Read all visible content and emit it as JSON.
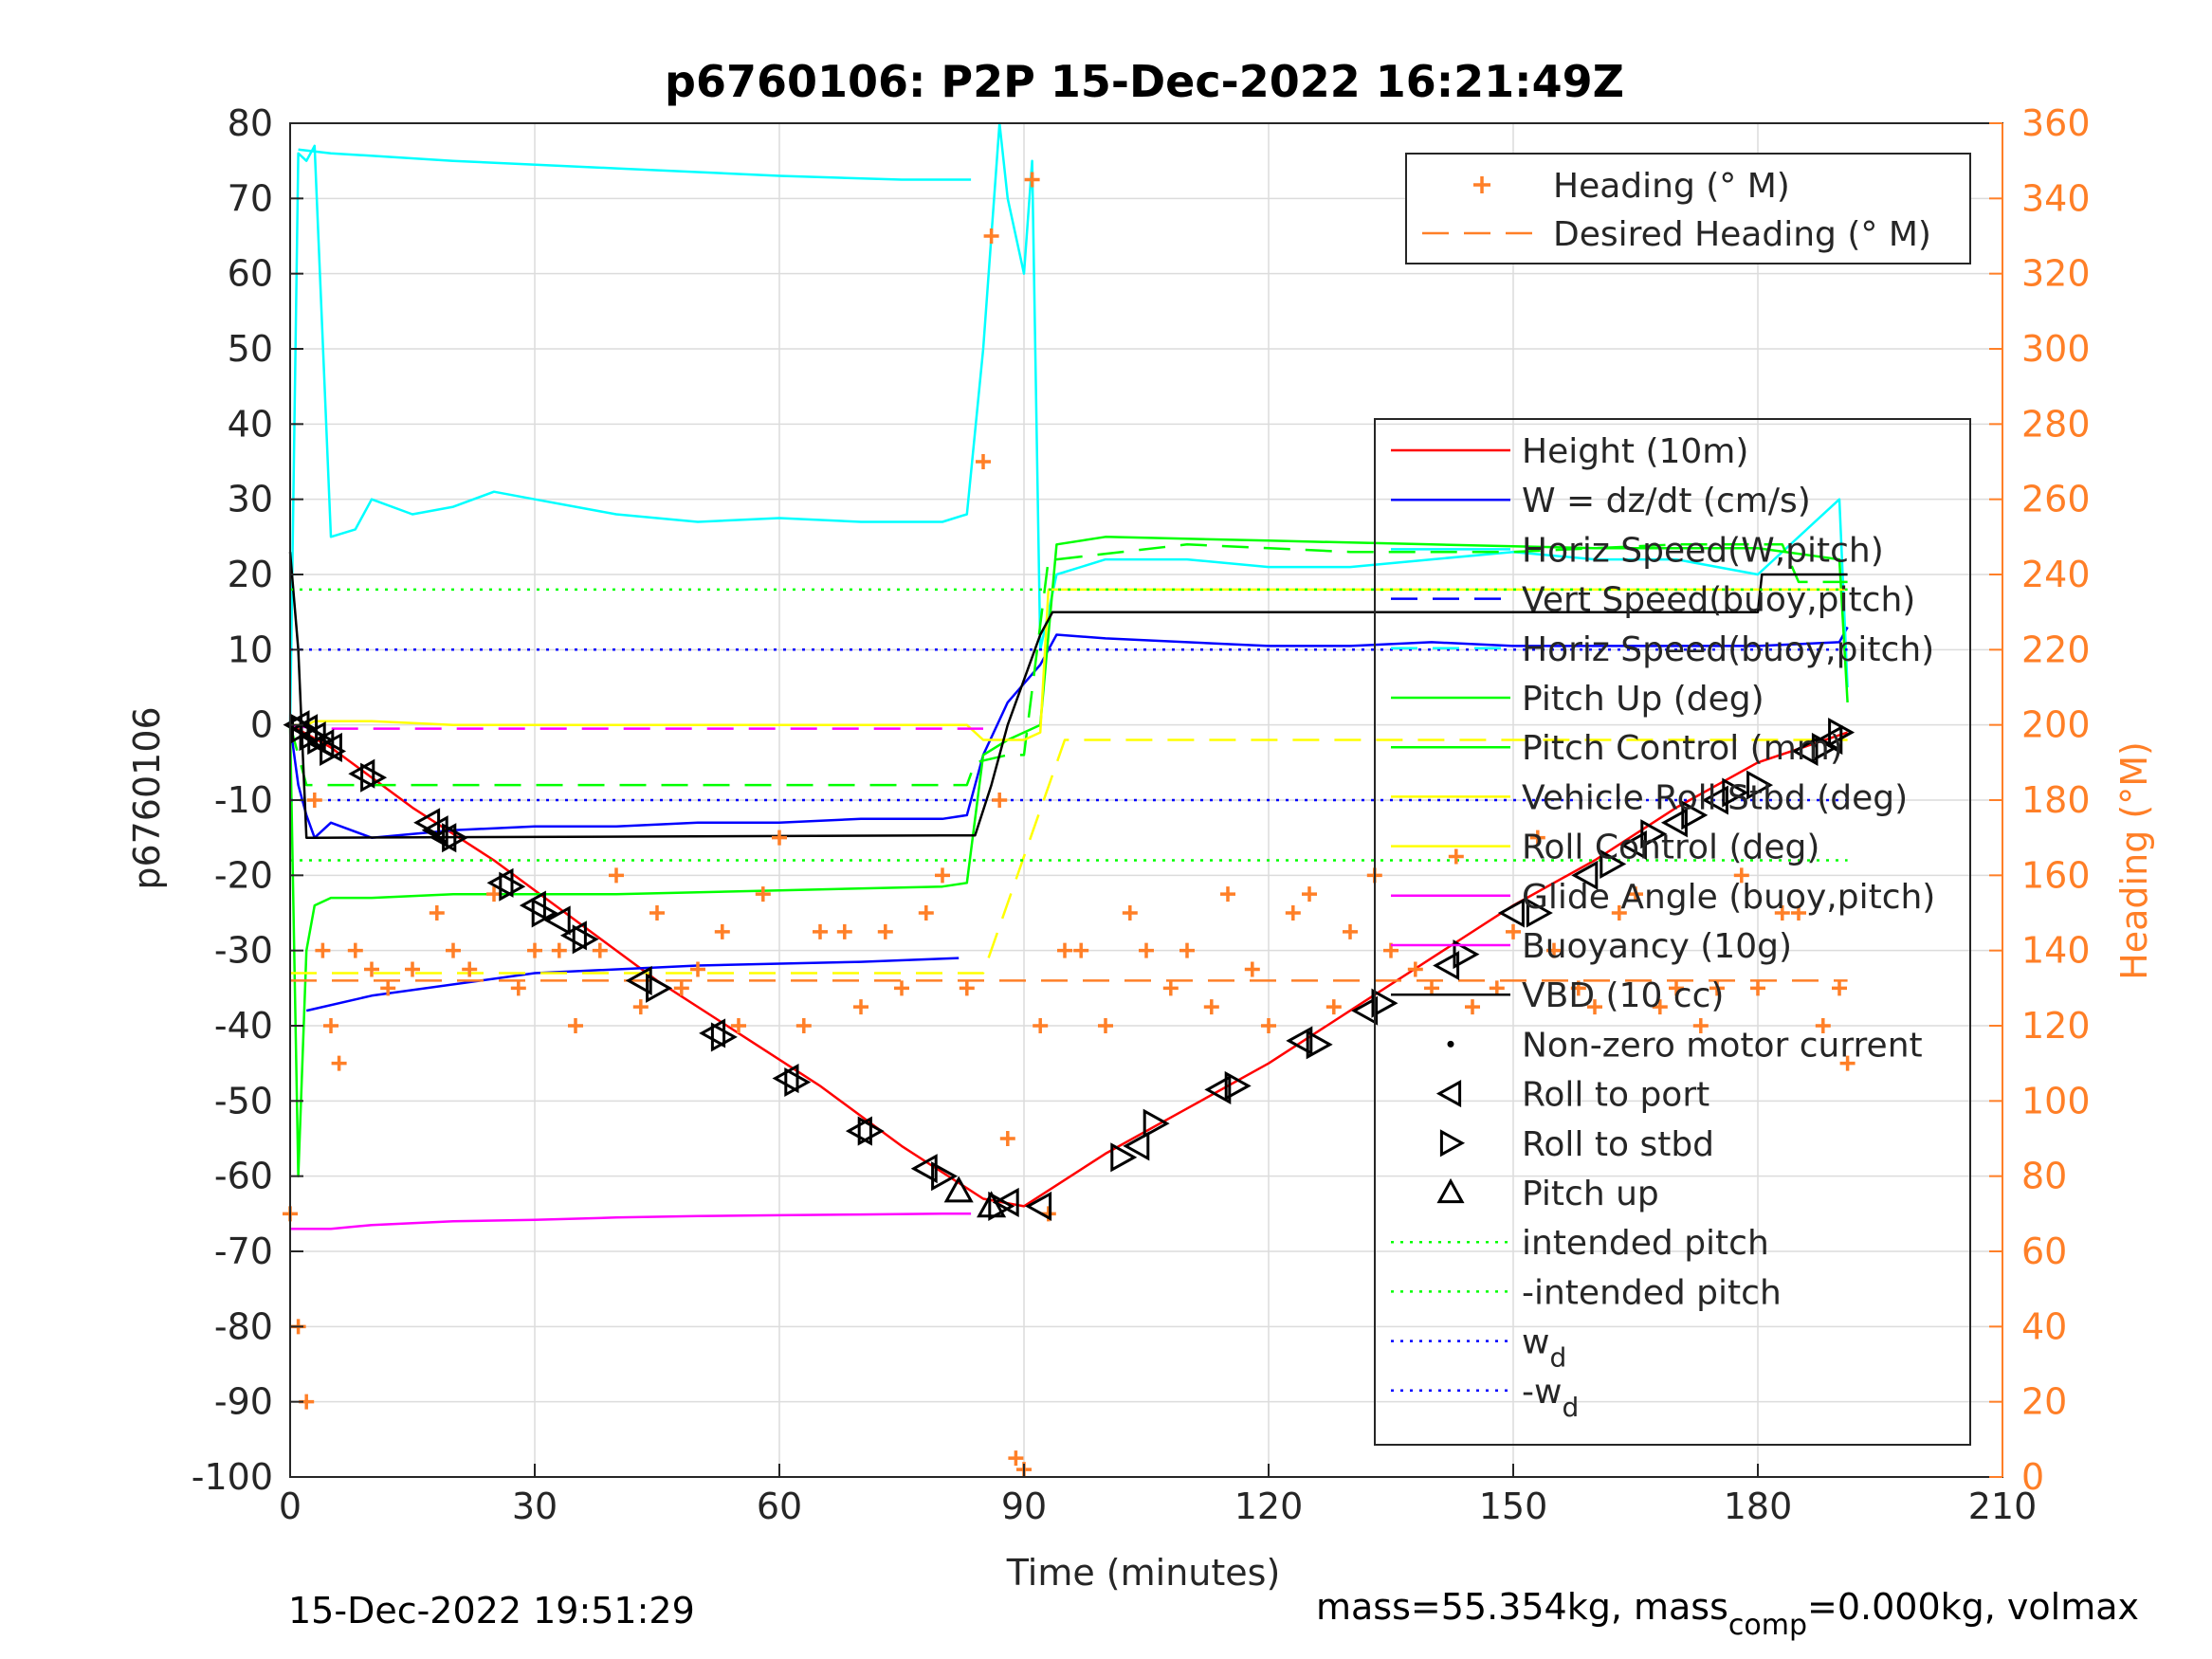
{
  "chart_data": {
    "type": "line",
    "title": "p6760106: P2P 15-Dec-2022 16:21:49Z",
    "xlabel": "Time (minutes)",
    "ylabel": "p6760106",
    "y2label": "Heading (°M)",
    "xlim": [
      0,
      210
    ],
    "ylim": [
      -100,
      80
    ],
    "y2lim": [
      0,
      360
    ],
    "xticks": [
      "0",
      "30",
      "60",
      "90",
      "120",
      "150",
      "180",
      "210"
    ],
    "yticks": [
      "80",
      "70",
      "60",
      "50",
      "40",
      "30",
      "20",
      "10",
      "0",
      "-10",
      "-20",
      "-30",
      "-40",
      "-50",
      "-60",
      "-70",
      "-80",
      "-90",
      "-100"
    ],
    "y2ticks": [
      "360",
      "340",
      "320",
      "300",
      "280",
      "260",
      "240",
      "220",
      "200",
      "180",
      "160",
      "140",
      "120",
      "100",
      "80",
      "60",
      "40",
      "20",
      "0"
    ],
    "grid": true,
    "footer_left": "15-Dec-2022 19:51:29",
    "footer_right": {
      "part1": "mass=55.354kg, mass",
      "sub": "comp",
      "part2": "=0.000kg, volmax"
    },
    "colors": {
      "heading": "#ff7f27",
      "height": "#ff0000",
      "w": "#0000ff",
      "horiz_speed_w": "#00ffff",
      "vert_speed_buoy": "#0000ff",
      "horiz_speed_buoy": "#00ffff",
      "pitch_up": "#00ff00",
      "pitch_control": "#00ff00",
      "roll": "#ffff00",
      "roll_control": "#ffff00",
      "glide_angle": "#ff00ff",
      "buoyancy": "#ff00ff",
      "vbd": "#000000",
      "intended_pitch": "#00ff00",
      "wd": "#0000ff"
    },
    "legend_heading": [
      {
        "label": "Heading (° M)",
        "style": "marker-plus",
        "color": "#ff7f27"
      },
      {
        "label": "Desired Heading (° M)",
        "style": "dashed",
        "color": "#ff7f27"
      }
    ],
    "legend_main": [
      {
        "label": "Height (10m)",
        "style": "solid",
        "color": "#ff0000"
      },
      {
        "label": "W = dz/dt (cm/s)",
        "style": "solid",
        "color": "#0000ff"
      },
      {
        "label": "Horiz Speed(W,pitch)",
        "style": "solid",
        "color": "#00ffff"
      },
      {
        "label": "Vert Speed(buoy,pitch)",
        "style": "dashed",
        "color": "#0000ff"
      },
      {
        "label": "Horiz Speed(buoy,pitch)",
        "style": "dashed",
        "color": "#00ffff"
      },
      {
        "label": "Pitch Up (deg)",
        "style": "solid",
        "color": "#00ff00"
      },
      {
        "label": "Pitch Control (mm)",
        "style": "solid",
        "color": "#00ff00"
      },
      {
        "label": "Vehicle Roll Stbd (deg)",
        "style": "solid",
        "color": "#ffff00"
      },
      {
        "label": "Roll Control (deg)",
        "style": "solid",
        "color": "#ffff00"
      },
      {
        "label": "Glide Angle (buoy,pitch)",
        "style": "solid",
        "color": "#ff00ff"
      },
      {
        "label": "Buoyancy (10g)",
        "style": "solid",
        "color": "#ff00ff"
      },
      {
        "label": "VBD (10 cc)",
        "style": "solid",
        "color": "#000000"
      },
      {
        "label": "Non-zero motor current",
        "style": "dot",
        "color": "#000000"
      },
      {
        "label": "Roll to port",
        "style": "tri-left",
        "color": "#000000"
      },
      {
        "label": "Roll to stbd",
        "style": "tri-right",
        "color": "#000000"
      },
      {
        "label": "Pitch up",
        "style": "tri-up",
        "color": "#000000"
      },
      {
        "label": "intended pitch",
        "style": "dotted",
        "color": "#00ff00"
      },
      {
        "label": "-intended pitch",
        "style": "dotted",
        "color": "#00ff00"
      },
      {
        "label": "w",
        "sub": "d",
        "style": "dotted",
        "color": "#0000ff"
      },
      {
        "label": "-w",
        "sub": "d",
        "style": "dotted",
        "color": "#0000ff"
      }
    ],
    "series": [
      {
        "name": "Height (10m)",
        "x": [
          0,
          5,
          15,
          25,
          35,
          45,
          55,
          65,
          75,
          85,
          90,
          100,
          110,
          120,
          130,
          140,
          150,
          160,
          170,
          180,
          191
        ],
        "y": [
          0,
          -3,
          -11,
          -18,
          -26,
          -34,
          -41,
          -48,
          -56,
          -63,
          -64,
          -57,
          -51,
          -45,
          -38,
          -31,
          -24,
          -18,
          -11,
          -5,
          -1
        ]
      },
      {
        "name": "W = dz/dt (cm/s)",
        "x": [
          0,
          1,
          2,
          3,
          5,
          10,
          20,
          30,
          40,
          50,
          60,
          70,
          80,
          83,
          85,
          88,
          92,
          94,
          100,
          110,
          120,
          130,
          140,
          150,
          160,
          170,
          180,
          190,
          191
        ],
        "y": [
          0,
          -8,
          -12,
          -15,
          -13,
          -15,
          -14,
          -13.5,
          -13.5,
          -13,
          -13,
          -12.5,
          -12.5,
          -12,
          -4,
          3,
          8,
          12,
          11.5,
          11,
          10.5,
          10.5,
          11,
          10.5,
          10.5,
          10.5,
          10.5,
          11,
          13
        ]
      },
      {
        "name": "Horiz Speed(W,pitch)",
        "x": [
          0,
          1,
          2,
          3,
          5,
          8,
          10,
          15,
          20,
          25,
          30,
          40,
          50,
          60,
          70,
          80,
          83,
          85,
          87,
          88,
          89,
          90,
          91,
          92,
          94,
          100,
          110,
          120,
          130,
          140,
          150,
          160,
          170,
          180,
          190,
          191
        ],
        "y": [
          0,
          76,
          75,
          77,
          25,
          26,
          30,
          28,
          29,
          31,
          30,
          28,
          27,
          27.5,
          27,
          27,
          28,
          50,
          80,
          70,
          65,
          60,
          75,
          10,
          20,
          22,
          22,
          21,
          21,
          22,
          23,
          22,
          22,
          20,
          30,
          5
        ]
      },
      {
        "name": "Vert Speed(buoy,pitch)",
        "x": [
          2,
          10,
          30,
          50,
          70,
          82
        ],
        "y": [
          -38,
          -36,
          -33,
          -32,
          -31.5,
          -31
        ]
      },
      {
        "name": "Horiz Speed(buoy,pitch)",
        "x": [
          1,
          5,
          20,
          40,
          60,
          75,
          83.5
        ],
        "y": [
          76.5,
          76,
          75,
          74,
          73,
          72.5,
          72.5
        ]
      },
      {
        "name": "Pitch Up (deg)",
        "x": [
          0,
          1,
          2,
          3,
          5,
          10,
          20,
          40,
          60,
          80,
          83,
          85,
          88,
          92,
          94,
          100,
          120,
          140,
          160,
          180,
          190,
          191
        ],
        "y": [
          0,
          -60,
          -30,
          -24,
          -23,
          -23,
          -22.5,
          -22.5,
          -22,
          -21.5,
          -21,
          -4,
          -2,
          0,
          24,
          25,
          24.5,
          24,
          23.5,
          23.5,
          22,
          3
        ]
      },
      {
        "name": "Pitch Control (mm)",
        "x": [
          0,
          2,
          3,
          83,
          84,
          88,
          90,
          93,
          94,
          110,
          130,
          150,
          170,
          183,
          185,
          191
        ],
        "y": [
          0,
          -8,
          -8,
          -8,
          -5,
          -4,
          -4,
          22,
          22,
          24,
          23,
          23,
          24,
          24,
          19,
          19
        ]
      },
      {
        "name": "Vehicle Roll Stbd (deg)",
        "x": [
          0,
          2,
          3,
          10,
          20,
          40,
          60,
          80,
          83,
          85,
          90,
          92,
          93,
          100,
          110,
          120,
          130,
          140,
          150,
          160,
          170,
          180,
          190,
          191
        ],
        "y": [
          0,
          0,
          0.5,
          0.5,
          0,
          0,
          0,
          0,
          0,
          -2,
          -2,
          -1,
          18,
          18,
          18,
          18,
          18,
          18,
          18,
          18,
          18,
          18,
          18,
          18
        ]
      },
      {
        "name": "Roll Control (deg)",
        "x": [
          0,
          5,
          10,
          20,
          40,
          60,
          80,
          85,
          95,
          100,
          120,
          140,
          160,
          180,
          191
        ],
        "y": [
          -33,
          -33,
          -33,
          -33,
          -33,
          -33,
          -33,
          -33,
          -2,
          -2,
          -2,
          -2,
          -2,
          -2,
          -2
        ]
      },
      {
        "name": "Glide Angle (buoy,pitch)",
        "x": [
          0,
          2,
          5,
          10,
          20,
          30,
          40,
          50,
          60,
          70,
          80,
          83.5
        ],
        "y": [
          -67,
          -67,
          -67,
          -66.5,
          -66,
          -65.8,
          -65.5,
          -65.3,
          -65.2,
          -65.1,
          -65,
          -65
        ]
      },
      {
        "name": "Buoyancy (10g)",
        "x": [
          0,
          3,
          84,
          85
        ],
        "y": [
          0,
          -0.5,
          -0.5,
          -0.5
        ]
      },
      {
        "name": "VBD (10 cc)",
        "x": [
          0,
          1,
          2,
          3,
          80,
          84,
          86,
          88,
          92,
          93.5,
          110,
          130,
          150,
          170,
          180,
          180.5,
          190,
          191
        ],
        "y": [
          23,
          10,
          -15,
          -15,
          -14.7,
          -14.7,
          -8,
          0,
          12,
          15,
          15,
          15,
          15,
          15,
          15,
          20,
          20,
          20
        ]
      },
      {
        "name": "intended pitch",
        "x": [
          0,
          191
        ],
        "y": [
          18,
          18
        ]
      },
      {
        "name": "-intended pitch",
        "x": [
          0,
          191
        ],
        "y": [
          -18,
          -18
        ]
      },
      {
        "name": "w_d",
        "x": [
          0,
          191
        ],
        "y": [
          10,
          10
        ]
      },
      {
        "name": "-w_d",
        "x": [
          0,
          191
        ],
        "y": [
          -10,
          -10
        ]
      },
      {
        "name": "Desired Heading (° M)",
        "x": [
          0,
          191
        ],
        "y2": [
          132,
          132
        ]
      },
      {
        "name": "Heading (° M)",
        "x": [
          0,
          1,
          2,
          3,
          4,
          5,
          6,
          8,
          10,
          12,
          15,
          18,
          20,
          22,
          25,
          28,
          30,
          33,
          35,
          38,
          40,
          43,
          45,
          48,
          50,
          53,
          55,
          58,
          60,
          63,
          65,
          68,
          70,
          73,
          75,
          78,
          80,
          83,
          85,
          86,
          87,
          88,
          89,
          90,
          91,
          92,
          93,
          95,
          97,
          100,
          103,
          105,
          108,
          110,
          113,
          115,
          118,
          120,
          123,
          125,
          128,
          130,
          133,
          135,
          138,
          140,
          143,
          145,
          148,
          150,
          153,
          155,
          158,
          160,
          163,
          165,
          168,
          170,
          173,
          175,
          178,
          180,
          183,
          185,
          188,
          190,
          191
        ],
        "y2": [
          70,
          40,
          20,
          180,
          140,
          120,
          110,
          140,
          135,
          130,
          135,
          150,
          140,
          135,
          155,
          130,
          140,
          140,
          120,
          140,
          160,
          125,
          150,
          130,
          135,
          145,
          120,
          155,
          170,
          120,
          145,
          145,
          125,
          145,
          130,
          150,
          160,
          130,
          270,
          330,
          180,
          90,
          5,
          2,
          345,
          120,
          70,
          140,
          140,
          120,
          150,
          140,
          130,
          140,
          125,
          155,
          135,
          120,
          150,
          155,
          125,
          145,
          160,
          140,
          135,
          130,
          165,
          125,
          130,
          145,
          170,
          140,
          130,
          125,
          150,
          155,
          125,
          130,
          120,
          130,
          160,
          130,
          150,
          150,
          120,
          130,
          110
        ]
      }
    ],
    "markers": {
      "roll_to_port": {
        "x": [
          1,
          2,
          3,
          4,
          5,
          9,
          17,
          18,
          19,
          26,
          30,
          33,
          35,
          43,
          52,
          61,
          70,
          78,
          88,
          92,
          104,
          114,
          124,
          132,
          142,
          150,
          159,
          165,
          170,
          175,
          186,
          189
        ],
        "y": [
          0,
          -0.5,
          -1.5,
          -2.5,
          -3,
          -6.5,
          -13,
          -14,
          -15,
          -21,
          -24,
          -26,
          -28,
          -34,
          -41,
          -47,
          -54,
          -59,
          -63.5,
          -64,
          -56,
          -48.5,
          -42,
          -38,
          -32,
          -25,
          -20,
          -16,
          -13,
          -10,
          -3.5,
          -2
        ]
      },
      "roll_to_stbd": {
        "x": [
          1.5,
          2.5,
          3.5,
          5,
          10,
          20,
          27,
          31,
          36,
          45,
          53,
          62,
          71,
          80,
          87,
          102,
          106,
          116,
          126,
          134,
          144,
          153,
          162,
          167,
          172,
          177,
          180,
          188,
          190
        ],
        "y": [
          -0.5,
          -1.5,
          -2,
          -3.5,
          -7,
          -15,
          -21.5,
          -25,
          -28.5,
          -35,
          -41.5,
          -47.5,
          -54,
          -60,
          -64,
          -57.5,
          -53,
          -48,
          -42.5,
          -37,
          -30.5,
          -25,
          -18.5,
          -14.5,
          -12,
          -9,
          -8,
          -3,
          -1
        ]
      },
      "pitch_up": {
        "x": [
          82,
          86
        ],
        "y": [
          -62,
          -64
        ]
      }
    }
  }
}
